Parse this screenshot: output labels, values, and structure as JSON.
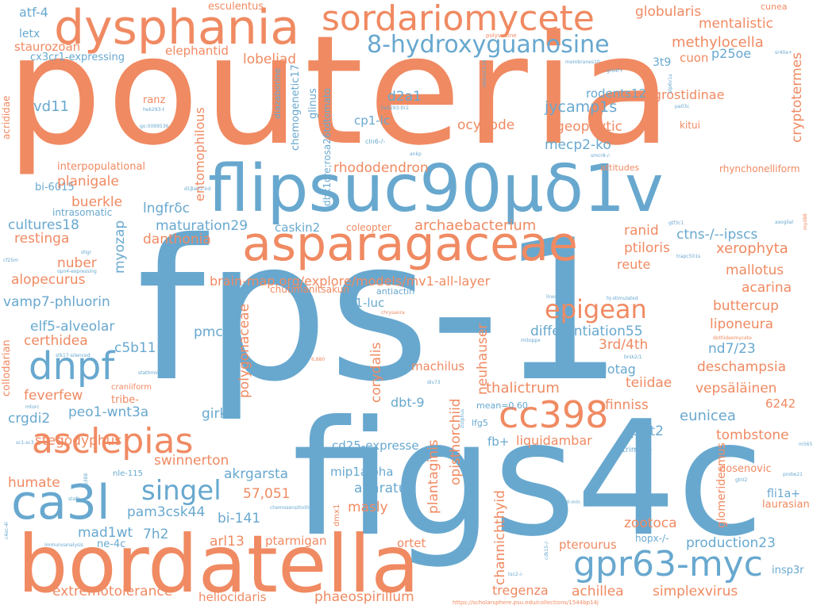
{
  "colors": {
    "orange": "#f08a62",
    "blue": "#68a8cf",
    "background": "#ffffff"
  },
  "words": [
    "pouteria",
    "fps-1",
    "figs4c",
    "flipsuc90μδ1v",
    "bordatella",
    "asparagaceae",
    "dysphania",
    "sordariomycete",
    "cc398",
    "dnpf",
    "ca3l",
    "asclepias",
    "gpr63-myc",
    "8-hydroxyguanosine",
    "singel",
    "epigean",
    "atf-4",
    "letx",
    "staurozoan",
    "cx3cr1-expressing",
    "vd11",
    "acrididae",
    "interpopulational",
    "bi-6015",
    "buerkle",
    "cultures18",
    "restinga",
    "alopecurus",
    "vamp7-phluorin",
    "elf5-alveolar",
    "certhidea",
    "feverfew",
    "crgdi2",
    "peo1-wnt3a",
    "stegodyphus",
    "humate",
    "mad1wt",
    "ne-4c",
    "extremotolerance",
    "nuber",
    "planigale",
    "intrasomatic",
    "esculentus",
    "elephantid",
    "lobeliad",
    "ranz",
    "entomophilous",
    "rhododendron",
    "d2a1",
    "cp1-lc",
    "jycamp1s",
    "rodents12",
    "ocypode",
    "geophytic",
    "mecp2-ko",
    "lngfrδc",
    "maturation29",
    "myozap",
    "danthonia",
    "caskin2",
    "archaebacterium",
    "ranid",
    "ctns-/--ipscs",
    "xerophyta",
    "ptiloris",
    "reute",
    "mallotus",
    "acarina",
    "buttercup",
    "liponeura",
    "nd7/23",
    "deschampsia",
    "vepsäläinen",
    "6242",
    "eunicea",
    "tombstone",
    "prrt2",
    "finniss",
    "teiidae",
    "jf585-halotag",
    "3rd/4th",
    "differentiation55",
    "thalictrum",
    "globularis",
    "mentalistic",
    "methylocella",
    "p25oe",
    "cuon",
    "agrostidinae",
    "cryptotermes",
    "3t9",
    "brain-map.org/explore/models/mv1-all-layer",
    "pmca4",
    "c5b11",
    "girk3",
    "57,051",
    "polygonaceae",
    "swinnerton",
    "akrgarsta",
    "pam3csk44",
    "bi-141",
    "7h2",
    "arl13",
    "ptarmigan",
    "heliocidaris",
    "phaeospirillum",
    "masly",
    "aparatus",
    "corydalis",
    "plantaginis",
    "opisthorchiid",
    "channichthyid",
    "neuhauser",
    "dbt-9",
    "machilus",
    "4t1-luc",
    "cd25-expresse",
    "mip1alpha",
    "liquidambar",
    "fb+",
    "zootoca",
    "production23",
    "pterourus",
    "tregenza",
    "achillea",
    "simplexvirus",
    "insp3r",
    "fli1a+",
    "laurasian",
    "dosenovic",
    "glomeridesmus",
    "hopx-/-",
    "ortet",
    "collodarian",
    "chemogenetic17",
    "diazaborine",
    "dbx1cre;rosa26tdtomato",
    "glinus",
    "coleopter",
    "chutimanitsakun",
    "antiactin",
    "mean=0.60",
    "lfg5",
    "rhynchonelliform",
    "attitudes",
    "kitui",
    "cunea",
    "polyvoltine",
    "membranes10",
    "hek293-t",
    "hek293-tlr2",
    "go:0099536",
    "cln6-/-",
    "ankp",
    "retina23,24",
    "gr64f+",
    "atp6v1a",
    "pa03c",
    "sr40a+",
    "smcr8-/-",
    "d1βarr2-kd",
    "axoglial",
    "gtf3c1",
    "myd88",
    "trapc501s",
    "hj-stimulated",
    "lines22",
    "chrysaora",
    "brsk2/1",
    "dothideomycete",
    "stk17-silenced",
    "mitoppx",
    "craniiform",
    "tribe-",
    "stathmin-2",
    "6,880",
    "div73",
    "cf25m",
    "shgr",
    "opn4-expressing",
    "mtorc",
    "sc1-sc3",
    "ziziphus",
    "trim9-/-",
    "m565",
    "probe21",
    "gtnl2",
    "cdk15-/-",
    "240-min",
    "tsc2-/-",
    "nle-115",
    "p388",
    "stafs",
    "chemosensitivitie",
    "dmx1",
    "immunoanalysis",
    "c4ec-4l",
    "https://scholarsphere.psu.edu/collections/1544bp14j"
  ]
}
